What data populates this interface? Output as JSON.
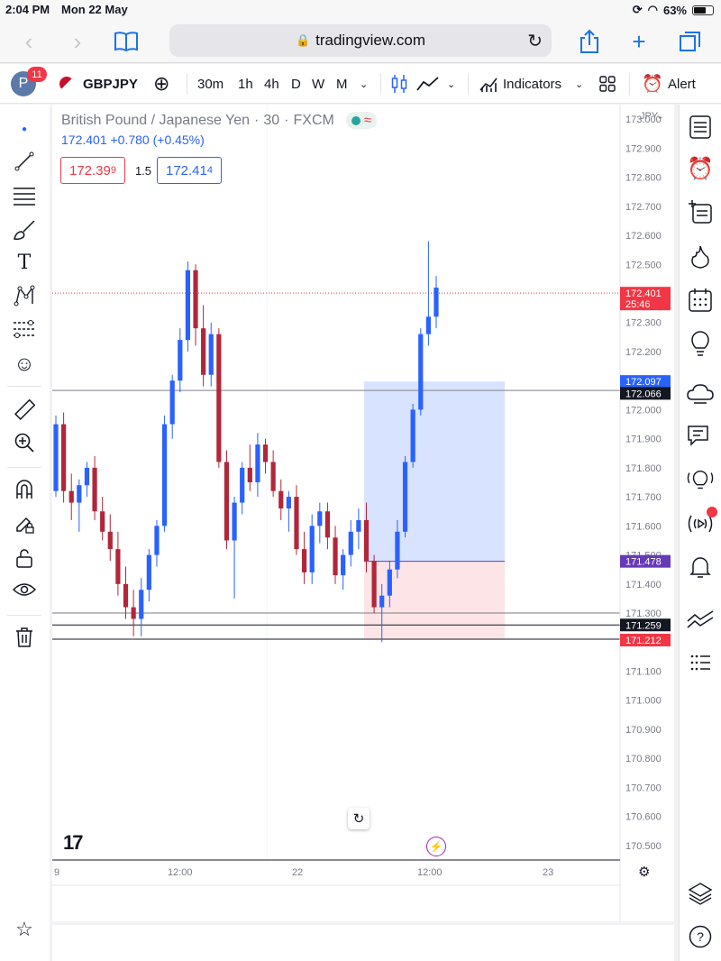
{
  "status": {
    "time": "2:04 PM",
    "date": "Mon 22 May",
    "battery": "63%"
  },
  "browser": {
    "url": "tradingview.com"
  },
  "toolbar": {
    "notifications": "11",
    "avatar_letter": "P",
    "symbol": "GBPJPY",
    "intervals": [
      "30m",
      "1h",
      "4h",
      "D",
      "W",
      "M"
    ],
    "indicators_label": "Indicators",
    "alert_label": "Alert"
  },
  "legend": {
    "name": "British Pound / Japanese Yen",
    "interval": "30",
    "exchange": "FXCM",
    "last": "172.401",
    "change": "+0.780 (+0.45%)",
    "sell": "172.39",
    "sell_pip": "9",
    "spread": "1.5",
    "buy": "172.41",
    "buy_pip": "4"
  },
  "axis": {
    "currency": "JPY",
    "ticks": [
      "173.000",
      "172.900",
      "172.800",
      "172.700",
      "172.600",
      "172.500",
      "172.400",
      "172.300",
      "172.200",
      "172.100",
      "172.000",
      "171.900",
      "171.800",
      "171.700",
      "171.600",
      "171.500",
      "171.400",
      "171.300",
      "171.200",
      "171.100",
      "171.000",
      "170.900",
      "170.800",
      "170.700",
      "170.600",
      "170.500"
    ],
    "time_labels": [
      "9",
      "12:00",
      "22",
      "12:00",
      "23"
    ]
  },
  "price_tags": {
    "last": "172.401",
    "countdown": "25:46",
    "target": "172.097",
    "hline": "172.066",
    "entry": "171.478",
    "support": "171.259",
    "stop": "171.212"
  },
  "colors": {
    "up": "#2962ff",
    "down": "#b2263a",
    "profit": "#2962ff",
    "loss": "#f23645",
    "entry": "#673ab7"
  },
  "chart_data": {
    "type": "candlestick",
    "symbol": "GBPJPY",
    "interval": "30",
    "y_range": [
      170.45,
      173.05
    ],
    "candles": [
      [
        171.72,
        171.98,
        171.7,
        171.95
      ],
      [
        171.95,
        171.99,
        171.68,
        171.72
      ],
      [
        171.72,
        171.78,
        171.62,
        171.68
      ],
      [
        171.68,
        171.76,
        171.58,
        171.74
      ],
      [
        171.74,
        171.82,
        171.7,
        171.8
      ],
      [
        171.8,
        171.84,
        171.62,
        171.65
      ],
      [
        171.65,
        171.7,
        171.55,
        171.58
      ],
      [
        171.58,
        171.64,
        171.48,
        171.52
      ],
      [
        171.52,
        171.58,
        171.36,
        171.4
      ],
      [
        171.4,
        171.46,
        171.28,
        171.32
      ],
      [
        171.32,
        171.38,
        171.22,
        171.28
      ],
      [
        171.28,
        171.42,
        171.22,
        171.38
      ],
      [
        171.38,
        171.52,
        171.34,
        171.5
      ],
      [
        171.5,
        171.62,
        171.46,
        171.6
      ],
      [
        171.6,
        171.98,
        171.58,
        171.95
      ],
      [
        171.95,
        172.12,
        171.9,
        172.1
      ],
      [
        172.1,
        172.28,
        172.06,
        172.24
      ],
      [
        172.24,
        172.51,
        172.2,
        172.48
      ],
      [
        172.48,
        172.5,
        172.22,
        172.28
      ],
      [
        172.28,
        172.36,
        172.08,
        172.12
      ],
      [
        172.12,
        172.3,
        172.08,
        172.26
      ],
      [
        172.26,
        172.28,
        171.8,
        171.82
      ],
      [
        171.82,
        171.86,
        171.52,
        171.55
      ],
      [
        171.55,
        171.7,
        171.35,
        171.68
      ],
      [
        171.68,
        171.82,
        171.64,
        171.8
      ],
      [
        171.8,
        171.88,
        171.72,
        171.75
      ],
      [
        171.75,
        171.92,
        171.7,
        171.88
      ],
      [
        171.88,
        171.9,
        171.78,
        171.82
      ],
      [
        171.82,
        171.86,
        171.7,
        171.72
      ],
      [
        171.72,
        171.76,
        171.62,
        171.66
      ],
      [
        171.66,
        171.72,
        171.58,
        171.7
      ],
      [
        171.7,
        171.74,
        171.5,
        171.52
      ],
      [
        171.52,
        171.58,
        171.4,
        171.44
      ],
      [
        171.44,
        171.64,
        171.4,
        171.6
      ],
      [
        171.6,
        171.68,
        171.54,
        171.65
      ],
      [
        171.65,
        171.68,
        171.52,
        171.56
      ],
      [
        171.56,
        171.6,
        171.4,
        171.43
      ],
      [
        171.43,
        171.52,
        171.38,
        171.5
      ],
      [
        171.5,
        171.62,
        171.46,
        171.58
      ],
      [
        171.58,
        171.66,
        171.52,
        171.62
      ],
      [
        171.62,
        171.68,
        171.44,
        171.48
      ],
      [
        171.48,
        171.5,
        171.3,
        171.32
      ],
      [
        171.32,
        171.4,
        171.2,
        171.36
      ],
      [
        171.36,
        171.48,
        171.32,
        171.45
      ],
      [
        171.45,
        171.62,
        171.42,
        171.58
      ],
      [
        171.58,
        171.84,
        171.56,
        171.82
      ],
      [
        171.82,
        172.02,
        171.8,
        172.0
      ],
      [
        172.0,
        172.28,
        171.98,
        172.26
      ],
      [
        172.26,
        172.58,
        172.22,
        172.32
      ],
      [
        172.32,
        172.46,
        172.28,
        172.42
      ]
    ]
  }
}
